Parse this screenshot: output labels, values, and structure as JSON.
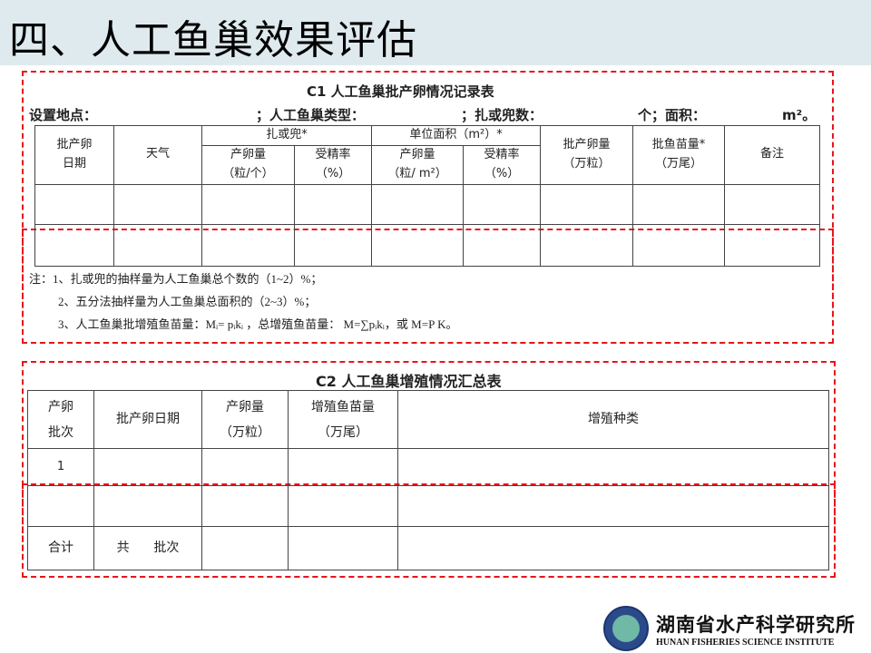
{
  "title": "四、人工鱼巢效果评估",
  "c1": {
    "caption": "C1  人工鱼巢批产卵情况记录表",
    "fields": [
      "设置地点：",
      "；人工鱼巢类型：",
      "；扎或兜数：",
      "个；面积：",
      "m²。"
    ],
    "headers": {
      "date": "批产卵\n日期",
      "weather": "天气",
      "group1": "扎或兜*",
      "group2": "单位面积（m²）*",
      "eggs_per": "产卵量\n（粒/个）",
      "fert1": "受精率\n（%）",
      "eggs_area": "产卵量\n（粒/ m²）",
      "fert2": "受精率\n（%）",
      "batch_eggs": "批产卵量\n（万粒）",
      "batch_fry": "批鱼苗量*\n（万尾）",
      "remark": "备注"
    },
    "notes": [
      "注：1、扎或兜的抽样量为人工鱼巢总个数的（1~2）%；",
      "2、五分法抽样量为人工鱼巢总面积的（2~3）%；",
      "3、人工鱼巢批增殖鱼苗量：Mᵢ= pᵢkᵢ ，总增殖鱼苗量： M=∑pᵢkᵢ，或 M=P K。"
    ]
  },
  "c2": {
    "caption": "C2  人工鱼巢增殖情况汇总表",
    "headers": [
      "产卵\n批次",
      "批产卵日期",
      "产卵量\n（万粒）",
      "增殖鱼苗量\n（万尾）",
      "增殖种类"
    ],
    "rows": [
      [
        "1",
        "",
        "",
        "",
        ""
      ],
      [
        "",
        "",
        "",
        "",
        ""
      ],
      [
        "合计",
        "共      批次",
        "",
        "",
        ""
      ]
    ]
  },
  "logo": {
    "cn": "湖南省水产科学研究所",
    "en": "HUNAN FISHERIES SCIENCE INSTITUTE"
  },
  "colors": {
    "titlebar": "#dfeaee",
    "dash": "#e8141b"
  }
}
